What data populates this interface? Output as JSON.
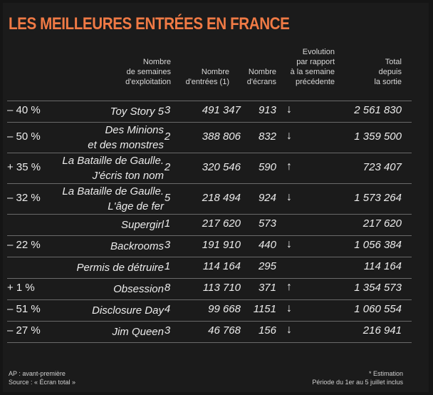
{
  "title": "LES MEILLEURES ENTRÉES EN FRANCE",
  "headers": {
    "weeks": "Nombre\nde semaines\nd'exploitation",
    "entries": "Nombre\nd'entrées (1)",
    "screens": "Nombre\nd'écrans",
    "evolution": "Evolution\npar rapport\nà la semaine\nprécédente",
    "total": "Total\ndepuis\nla sortie"
  },
  "rows": [
    {
      "film": "Toy Story 5",
      "weeks": "3",
      "entries": "491 347",
      "screens": "913",
      "arrow": "down",
      "evolution": "– 40 %",
      "total": "2 561 830"
    },
    {
      "film": "Des Minions\net des monstres",
      "weeks": "2",
      "entries": "388 806",
      "screens": "832",
      "arrow": "down",
      "evolution": "– 50 %",
      "total": "1 359 500"
    },
    {
      "film": "La Bataille de Gaulle.\nJ'écris ton nom",
      "weeks": "2",
      "entries": "320 546",
      "screens": "590",
      "arrow": "up",
      "evolution": "+ 35 %",
      "total": "723 407"
    },
    {
      "film": "La Bataille de Gaulle.\nL'âge de fer",
      "weeks": "5",
      "entries": "218 494",
      "screens": "924",
      "arrow": "down",
      "evolution": "– 32 %",
      "total": "1 573 264"
    },
    {
      "film": "Supergirl",
      "weeks": "1",
      "entries": "217 620",
      "screens": "573",
      "arrow": "",
      "evolution": "",
      "total": "217 620"
    },
    {
      "film": "Backrooms",
      "weeks": "3",
      "entries": "191 910",
      "screens": "440",
      "arrow": "down",
      "evolution": "– 22 %",
      "total": "1 056 384"
    },
    {
      "film": "Permis de détruire",
      "weeks": "1",
      "entries": "114 164",
      "screens": "295",
      "arrow": "",
      "evolution": "",
      "total": "114 164"
    },
    {
      "film": "Obsession",
      "weeks": "8",
      "entries": "113 710",
      "screens": "371",
      "arrow": "up",
      "evolution": "+ 1 %",
      "total": "1 354 573"
    },
    {
      "film": "Disclosure Day",
      "weeks": "4",
      "entries": "99 668",
      "screens": "1151",
      "arrow": "down",
      "evolution": "– 51 %",
      "total": "1 060 554"
    },
    {
      "film": "Jim Queen",
      "weeks": "3",
      "entries": "46 768",
      "screens": "156",
      "arrow": "down",
      "evolution": "– 27 %",
      "total": "216 941"
    }
  ],
  "footer": {
    "left": "AP : avant-première\nSource : « Écran total »",
    "right": "* Estimation\nPériode du 1er au 5 juillet inclus"
  },
  "colors": {
    "title": "#f07a45",
    "background": "#1b1b1b",
    "rule": "#6a6a6a"
  }
}
